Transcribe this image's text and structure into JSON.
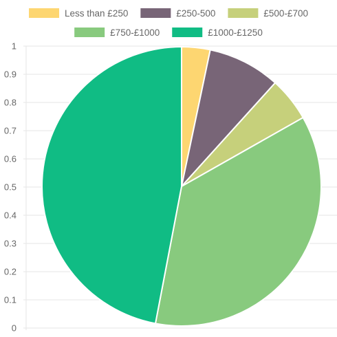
{
  "chart_data": {
    "type": "pie",
    "categories": [
      "Less than £250",
      "£250-500",
      "£500-£700",
      "£750-£1000",
      "£1000-£1250"
    ],
    "values": [
      3.3,
      8.4,
      5.1,
      36.2,
      47.0
    ],
    "colors": [
      "#fdd671",
      "#786577",
      "#c6d07b",
      "#88ca7e",
      "#10bc84"
    ],
    "legend_position": "top",
    "ylim": [
      0,
      1
    ],
    "yticks": [
      "0",
      "0.1",
      "0.2",
      "0.3",
      "0.4",
      "0.5",
      "0.6",
      "0.7",
      "0.8",
      "0.9",
      "1"
    ],
    "grid": true
  }
}
